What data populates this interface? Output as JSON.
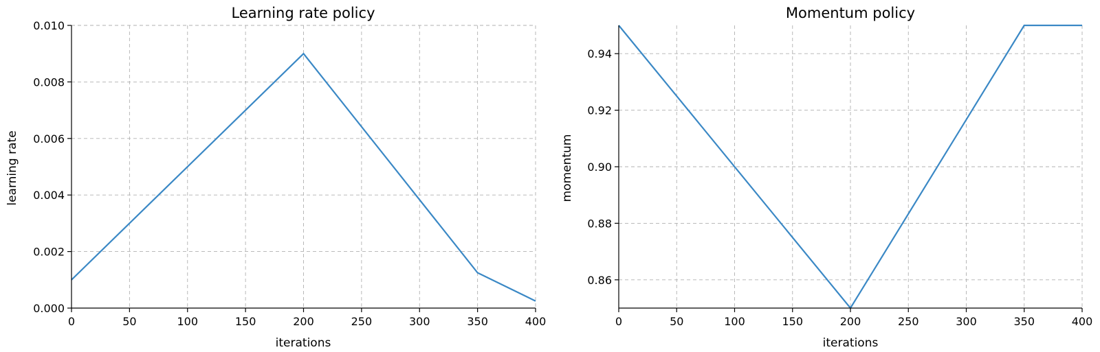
{
  "chart_data": [
    {
      "type": "line",
      "title": "Learning rate policy",
      "xlabel": "iterations",
      "ylabel": "learning rate",
      "xlim": [
        0,
        400
      ],
      "ylim": [
        0,
        0.01
      ],
      "xticks": [
        "0",
        "50",
        "100",
        "150",
        "200",
        "250",
        "300",
        "350",
        "400"
      ],
      "yticks": [
        "0.000",
        "0.002",
        "0.004",
        "0.006",
        "0.008",
        "0.010"
      ],
      "grid": true,
      "series": [
        {
          "color": "#3a88c5",
          "x": [
            0,
            200,
            350,
            400
          ],
          "y": [
            0.001,
            0.009,
            0.00125,
            0.00025
          ]
        }
      ]
    },
    {
      "type": "line",
      "title": "Momentum policy",
      "xlabel": "iterations",
      "ylabel": "momentum",
      "xlim": [
        0,
        400
      ],
      "ylim": [
        0.85,
        0.95
      ],
      "xticks": [
        "0",
        "50",
        "100",
        "150",
        "200",
        "250",
        "300",
        "350",
        "400"
      ],
      "yticks": [
        "0.86",
        "0.88",
        "0.90",
        "0.92",
        "0.94"
      ],
      "grid": true,
      "series": [
        {
          "color": "#3a88c5",
          "x": [
            0,
            200,
            350,
            400
          ],
          "y": [
            0.95,
            0.85,
            0.95,
            0.95
          ]
        }
      ]
    }
  ]
}
